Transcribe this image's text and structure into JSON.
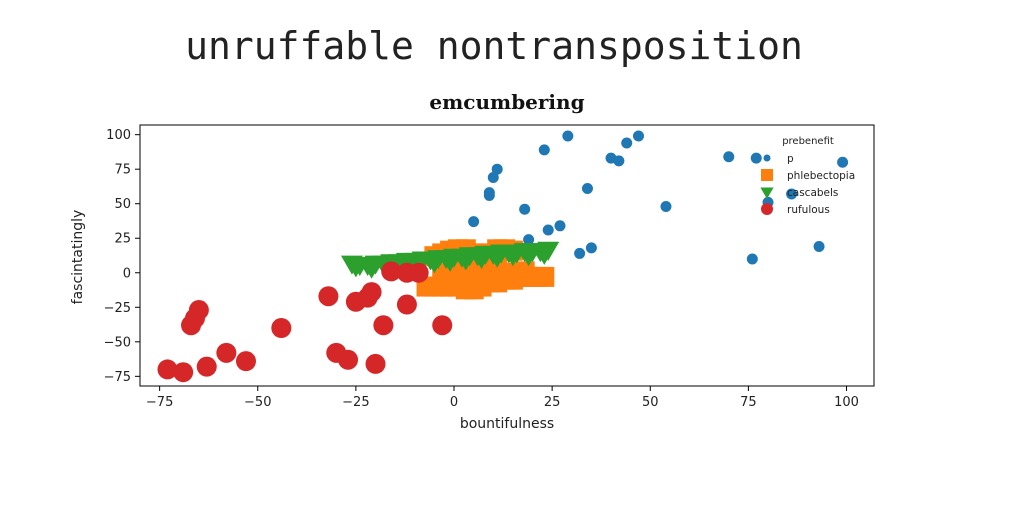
{
  "page": {
    "heading": "unruffable nontransposition"
  },
  "chart_data": {
    "type": "scatter",
    "title": "emcumbering",
    "xlabel": "bountifulness",
    "ylabel": "fascintatingly",
    "xlim": [
      -80,
      107
    ],
    "ylim": [
      -82,
      107
    ],
    "xticks": [
      -75,
      -50,
      -25,
      0,
      25,
      50,
      75,
      100
    ],
    "yticks": [
      -75,
      -50,
      -25,
      0,
      25,
      50,
      75,
      100
    ],
    "xtick_labels": [
      "−75",
      "−50",
      "−25",
      "0",
      "25",
      "50",
      "75",
      "100"
    ],
    "ytick_labels": [
      "−75",
      "−50",
      "−25",
      "0",
      "25",
      "50",
      "75",
      "100"
    ],
    "grid": false,
    "legend": {
      "title": "prebenefit",
      "placement": "top-right"
    },
    "series": [
      {
        "name": "p",
        "marker": "circle",
        "color": "#1f77b4",
        "size": "small",
        "points": [
          [
            29,
            99
          ],
          [
            47,
            99
          ],
          [
            44,
            94
          ],
          [
            23,
            89
          ],
          [
            40,
            83
          ],
          [
            42,
            81
          ],
          [
            70,
            84
          ],
          [
            11,
            75
          ],
          [
            10,
            69
          ],
          [
            34,
            61
          ],
          [
            9,
            58
          ],
          [
            9,
            56
          ],
          [
            54,
            48
          ],
          [
            18,
            46
          ],
          [
            5,
            37
          ],
          [
            27,
            34
          ],
          [
            24,
            31
          ],
          [
            19,
            24
          ],
          [
            35,
            18
          ],
          [
            32,
            14
          ],
          [
            76,
            10
          ],
          [
            93,
            19
          ],
          [
            11,
            19
          ],
          [
            86,
            57
          ],
          [
            99,
            80
          ],
          [
            80,
            51
          ],
          [
            77,
            83
          ]
        ]
      },
      {
        "name": "phlebectopia",
        "marker": "square",
        "color": "#ff7f0e",
        "size": "large",
        "points": [
          [
            -7,
            -10
          ],
          [
            -5,
            -10
          ],
          [
            -3,
            -10
          ],
          [
            -1,
            -10
          ],
          [
            1,
            -10
          ],
          [
            3,
            -12
          ],
          [
            5,
            -12
          ],
          [
            7,
            -10
          ],
          [
            9,
            -7
          ],
          [
            11,
            -7
          ],
          [
            13,
            -5
          ],
          [
            15,
            -5
          ],
          [
            17,
            -3
          ],
          [
            19,
            -3
          ],
          [
            21,
            -3
          ],
          [
            23,
            -3
          ],
          [
            -5,
            12
          ],
          [
            -3,
            14
          ],
          [
            -1,
            16
          ],
          [
            1,
            17
          ],
          [
            3,
            17
          ],
          [
            5,
            14
          ],
          [
            7,
            14
          ],
          [
            9,
            14
          ],
          [
            11,
            17
          ],
          [
            13,
            17
          ],
          [
            15,
            16
          ],
          [
            -3,
            -3
          ],
          [
            0,
            -5
          ],
          [
            3,
            -5
          ],
          [
            6,
            -3
          ],
          [
            9,
            -1
          ],
          [
            12,
            -1
          ],
          [
            15,
            0
          ],
          [
            18,
            1
          ],
          [
            -1,
            5
          ],
          [
            2,
            5
          ],
          [
            5,
            6
          ],
          [
            8,
            7
          ],
          [
            11,
            8
          ]
        ]
      },
      {
        "name": "cascabels",
        "marker": "triangle-down",
        "color": "#2ca02c",
        "size": "large",
        "points": [
          [
            -26,
            7
          ],
          [
            -24,
            6
          ],
          [
            -22,
            6
          ],
          [
            -20,
            7
          ],
          [
            -18,
            7
          ],
          [
            -16,
            8
          ],
          [
            -14,
            8
          ],
          [
            -12,
            9
          ],
          [
            -10,
            9
          ],
          [
            -8,
            10
          ],
          [
            -6,
            10
          ],
          [
            -4,
            11
          ],
          [
            -2,
            11
          ],
          [
            0,
            12
          ],
          [
            2,
            12
          ],
          [
            4,
            13
          ],
          [
            6,
            13
          ],
          [
            8,
            14
          ],
          [
            10,
            14
          ],
          [
            12,
            15
          ],
          [
            14,
            15
          ],
          [
            16,
            15
          ],
          [
            18,
            16
          ],
          [
            20,
            16
          ],
          [
            22,
            16
          ],
          [
            24,
            17
          ],
          [
            -25,
            5
          ],
          [
            -21,
            4
          ],
          [
            -17,
            5
          ],
          [
            -13,
            6
          ],
          [
            -9,
            7
          ],
          [
            -5,
            8
          ],
          [
            -1,
            9
          ],
          [
            3,
            10
          ],
          [
            7,
            11
          ],
          [
            11,
            12
          ],
          [
            15,
            13
          ],
          [
            19,
            13
          ],
          [
            23,
            14
          ]
        ]
      },
      {
        "name": "rufulous",
        "marker": "circle",
        "color": "#d62728",
        "size": "large",
        "points": [
          [
            -73,
            -70
          ],
          [
            -69,
            -72
          ],
          [
            -67,
            -38
          ],
          [
            -65,
            -27
          ],
          [
            -63,
            -68
          ],
          [
            -58,
            -58
          ],
          [
            -53,
            -64
          ],
          [
            -44,
            -40
          ],
          [
            -32,
            -17
          ],
          [
            -30,
            -58
          ],
          [
            -27,
            -63
          ],
          [
            -25,
            -21
          ],
          [
            -22,
            -18
          ],
          [
            -21,
            -14
          ],
          [
            -20,
            -66
          ],
          [
            -18,
            -38
          ],
          [
            -16,
            1
          ],
          [
            -12,
            -23
          ],
          [
            -12,
            0
          ],
          [
            -9,
            0
          ],
          [
            -3,
            -38
          ],
          [
            -66,
            -33
          ]
        ]
      }
    ]
  }
}
